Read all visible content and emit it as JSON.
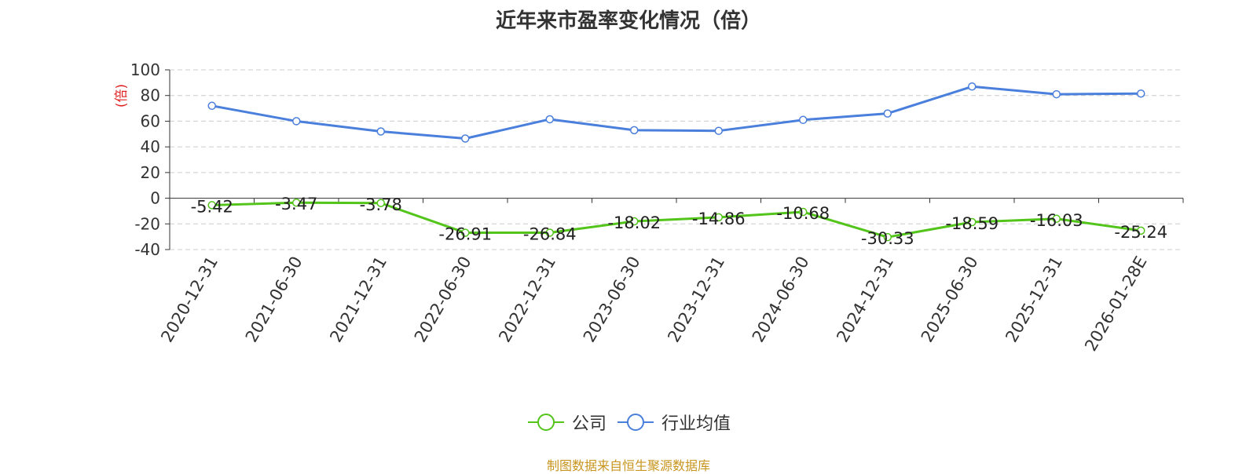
{
  "chart_data": {
    "type": "line",
    "title": "近年来市盈率变化情况（倍）",
    "ylabel": "(倍)",
    "xlabel": "",
    "categories": [
      "2020-12-31",
      "2021-06-30",
      "2021-12-31",
      "2022-06-30",
      "2022-12-31",
      "2023-06-30",
      "2023-12-31",
      "2024-06-30",
      "2024-12-31",
      "2025-06-30",
      "2025-12-31",
      "2026-01-28E"
    ],
    "ylim": [
      -40,
      100
    ],
    "yticks": [
      100,
      80,
      60,
      40,
      20,
      0,
      -20,
      -40
    ],
    "grid": true,
    "legend_position": "bottom",
    "series": [
      {
        "name": "公司",
        "color": "#52c41a",
        "show_labels": true,
        "values": [
          -5.42,
          -3.47,
          -3.78,
          -26.91,
          -26.84,
          -18.02,
          -14.86,
          -10.68,
          -30.33,
          -18.59,
          -16.03,
          -25.24
        ]
      },
      {
        "name": "行业均值",
        "color": "#4a7fdc",
        "show_labels": false,
        "values": [
          72,
          60,
          52,
          46.5,
          61.5,
          53,
          52.5,
          61,
          66,
          87,
          81,
          81.5
        ]
      }
    ]
  },
  "source_note": "制图数据来自恒生聚源数据库"
}
